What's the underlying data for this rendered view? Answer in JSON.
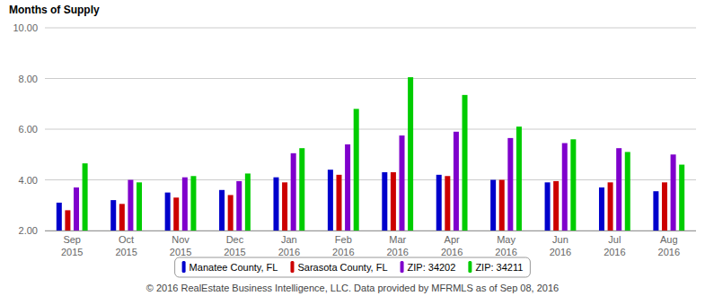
{
  "chart_data": {
    "type": "bar",
    "ylabel": "Months of Supply",
    "caption": "© 2016 RealEstate Business Intelligence, LLC. Data provided by MFRMLS as of Sep 08, 2016",
    "categories": [
      "Sep 2015",
      "Oct 2015",
      "Nov 2015",
      "Dec 2015",
      "Jan 2016",
      "Feb 2016",
      "Mar 2016",
      "Apr 2016",
      "May 2016",
      "Jun 2016",
      "Jul 2016",
      "Aug 2016"
    ],
    "series": [
      {
        "name": "Manatee County, FL",
        "color": "#0000cc",
        "values": [
          3.1,
          3.2,
          3.5,
          3.6,
          4.1,
          4.4,
          4.3,
          4.2,
          4.0,
          3.9,
          3.7,
          3.55
        ]
      },
      {
        "name": "Sarasota County, FL",
        "color": "#cc0000",
        "values": [
          2.8,
          3.05,
          3.3,
          3.4,
          3.9,
          4.2,
          4.3,
          4.15,
          4.0,
          3.95,
          3.9,
          3.9
        ]
      },
      {
        "name": "ZIP: 34202",
        "color": "#7f00cc",
        "values": [
          3.7,
          4.0,
          4.1,
          3.95,
          5.05,
          5.4,
          5.75,
          5.9,
          5.65,
          5.45,
          5.25,
          5.0
        ]
      },
      {
        "name": "ZIP: 34211",
        "color": "#00cc00",
        "values": [
          4.65,
          3.9,
          4.15,
          4.25,
          5.25,
          6.8,
          8.05,
          7.35,
          6.1,
          5.6,
          5.1,
          4.6
        ]
      }
    ],
    "ylim": [
      2,
      10
    ],
    "yticks": [
      {
        "value": 2,
        "label": "2.00"
      },
      {
        "value": 4,
        "label": "4.00"
      },
      {
        "value": 6,
        "label": "6.00"
      },
      {
        "value": 8,
        "label": "8.00"
      },
      {
        "value": 10,
        "label": "10.00"
      }
    ],
    "grid": true,
    "legend": "bottom"
  }
}
